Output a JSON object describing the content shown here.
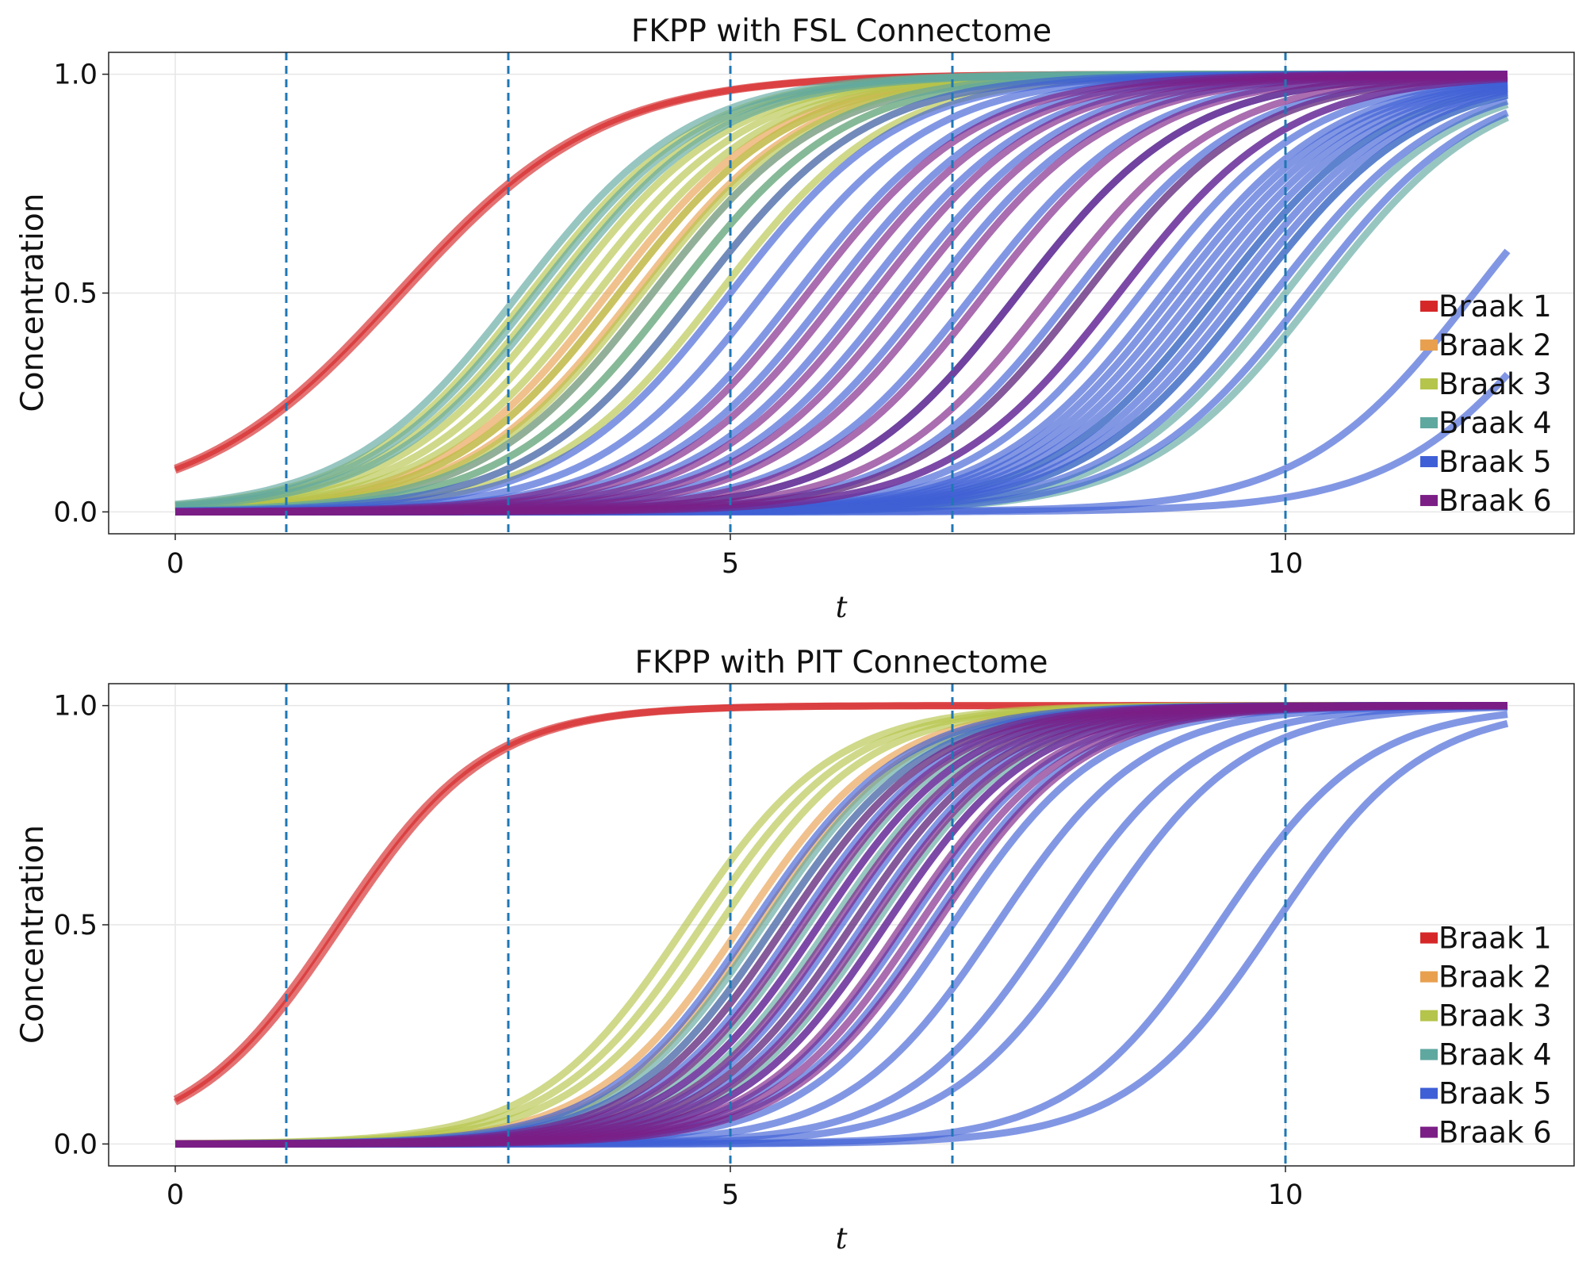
{
  "chart_data": [
    {
      "type": "line",
      "title": "FKPP with FSL Connectome",
      "xlabel": "t",
      "ylabel": "Concentration",
      "xlim": [
        -0.6,
        12.6
      ],
      "ylim": [
        -0.05,
        1.05
      ],
      "xticks": [
        0,
        5,
        10
      ],
      "yticks": [
        0.0,
        0.5,
        1.0
      ],
      "ytick_labels": [
        "0.0",
        "0.5",
        "1.0"
      ],
      "grid": true,
      "legend": "right",
      "vlines": [
        1,
        3,
        5,
        7,
        10
      ],
      "x_range": [
        0,
        12
      ],
      "series": [
        {
          "name": "Braak 1",
          "color": "#d62728",
          "midpoints": [
            2.0,
            2.05
          ],
          "k": 1.1
        },
        {
          "name": "Braak 2",
          "color": "#e8a04f",
          "midpoints": [
            3.9,
            4.0,
            4.15,
            4.3
          ],
          "k": 1.3
        },
        {
          "name": "Braak 3",
          "color": "#b5c44a",
          "midpoints": [
            3.2,
            3.35,
            3.5,
            3.65,
            3.8,
            4.0,
            4.2,
            4.5,
            4.7,
            4.9
          ],
          "k": 1.3
        },
        {
          "name": "Braak 4",
          "color": "#5fa8a0",
          "midpoints": [
            3.1,
            3.25,
            3.4,
            4.3,
            4.5,
            7.6,
            8.2,
            9.4,
            9.7,
            10.0,
            10.3
          ],
          "k": 1.3
        },
        {
          "name": "Braak 5",
          "color": "#3f5fd6",
          "midpoints": [
            4.7,
            5.0,
            5.3,
            5.6,
            5.9,
            6.2,
            6.5,
            6.8,
            7.2,
            7.6,
            8.1,
            8.5,
            8.7,
            8.9,
            9.0,
            9.1,
            9.2,
            9.3,
            9.4,
            9.5,
            9.6,
            9.7,
            9.9,
            10.2,
            11.7,
            12.6
          ],
          "k": 1.3
        },
        {
          "name": "Braak 6",
          "color": "#7b1f86",
          "midpoints": [
            5.7,
            6.0,
            6.3,
            6.6,
            6.9,
            7.3,
            7.6,
            7.9,
            8.2,
            8.5
          ],
          "k": 1.3
        }
      ]
    },
    {
      "type": "line",
      "title": "FKPP with PIT Connectome",
      "xlabel": "t",
      "ylabel": "Concentration",
      "xlim": [
        -0.6,
        12.6
      ],
      "ylim": [
        -0.05,
        1.05
      ],
      "xticks": [
        0,
        5,
        10
      ],
      "yticks": [
        0.0,
        0.5,
        1.0
      ],
      "ytick_labels": [
        "0.0",
        "0.5",
        "1.0"
      ],
      "grid": true,
      "legend": "right",
      "vlines": [
        1,
        3,
        5,
        7,
        10
      ],
      "x_range": [
        0,
        12
      ],
      "series": [
        {
          "name": "Braak 1",
          "color": "#d62728",
          "midpoints": [
            1.45,
            1.5
          ],
          "k": 1.5
        },
        {
          "name": "Braak 2",
          "color": "#e8a04f",
          "midpoints": [
            5.1,
            5.25
          ],
          "k": 1.5
        },
        {
          "name": "Braak 3",
          "color": "#b5c44a",
          "midpoints": [
            4.6,
            4.75,
            4.9,
            5.4
          ],
          "k": 1.5
        },
        {
          "name": "Braak 4",
          "color": "#5fa8a0",
          "midpoints": [
            5.3,
            5.5,
            5.7,
            5.9,
            6.1,
            6.3
          ],
          "k": 1.5
        },
        {
          "name": "Braak 5",
          "color": "#3f5fd6",
          "midpoints": [
            5.2,
            5.4,
            5.6,
            5.8,
            6.0,
            6.2,
            6.4,
            6.6,
            6.8,
            7.0,
            7.4,
            7.9,
            8.3,
            9.4,
            9.9
          ],
          "k": 1.5
        },
        {
          "name": "Braak 6",
          "color": "#7b1f86",
          "midpoints": [
            5.5,
            5.65,
            5.8,
            5.95,
            6.1,
            6.25,
            6.4,
            6.55,
            6.7,
            6.85
          ],
          "k": 1.5
        }
      ]
    }
  ]
}
